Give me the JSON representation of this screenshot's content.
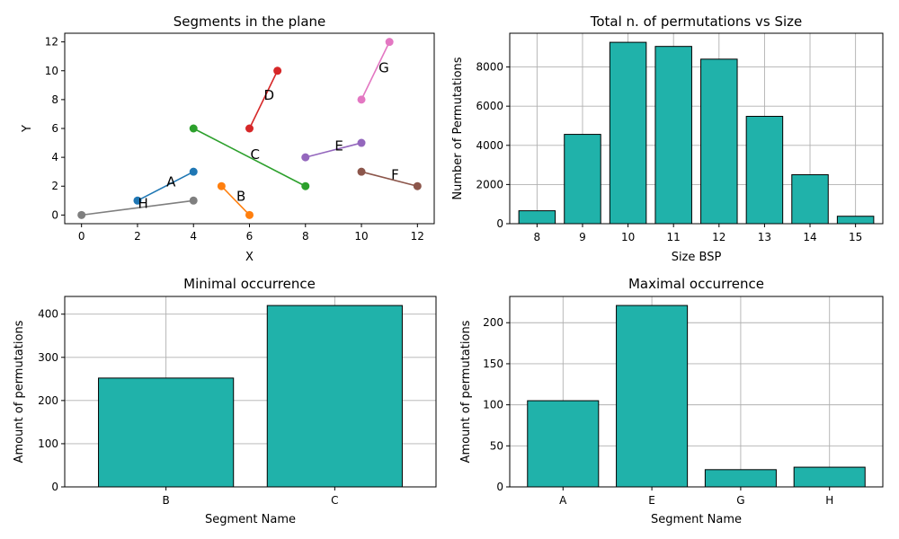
{
  "chart_data": [
    {
      "type": "line",
      "title": "Segments in the plane",
      "xlabel": "X",
      "ylabel": "Y",
      "xlim": [
        -0.6,
        12.6
      ],
      "ylim": [
        -0.6,
        12.6
      ],
      "xticks": [
        0,
        2,
        4,
        6,
        8,
        10,
        12
      ],
      "yticks": [
        0,
        2,
        4,
        6,
        8,
        10,
        12
      ],
      "grid": false,
      "segments": [
        {
          "name": "A",
          "color": "#1f77b4",
          "points": [
            [
              2,
              1
            ],
            [
              4,
              3
            ]
          ],
          "label_at": [
            3.2,
            2.3
          ]
        },
        {
          "name": "B",
          "color": "#ff7f0e",
          "points": [
            [
              5,
              2
            ],
            [
              6,
              0
            ]
          ],
          "label_at": [
            5.7,
            1.3
          ]
        },
        {
          "name": "C",
          "color": "#2ca02c",
          "points": [
            [
              4,
              6
            ],
            [
              8,
              2
            ]
          ],
          "label_at": [
            6.2,
            4.2
          ]
        },
        {
          "name": "D",
          "color": "#d62728",
          "points": [
            [
              6,
              6
            ],
            [
              7,
              10
            ]
          ],
          "label_at": [
            6.7,
            8.3
          ]
        },
        {
          "name": "E",
          "color": "#9467bd",
          "points": [
            [
              8,
              4
            ],
            [
              10,
              5
            ]
          ],
          "label_at": [
            9.2,
            4.8
          ]
        },
        {
          "name": "F",
          "color": "#8c564b",
          "points": [
            [
              10,
              3
            ],
            [
              12,
              2
            ]
          ],
          "label_at": [
            11.2,
            2.8
          ]
        },
        {
          "name": "G",
          "color": "#e377c2",
          "points": [
            [
              10,
              8
            ],
            [
              11,
              12
            ]
          ],
          "label_at": [
            10.8,
            10.2
          ]
        },
        {
          "name": "H",
          "color": "#7f7f7f",
          "points": [
            [
              0,
              0
            ],
            [
              4,
              1
            ]
          ],
          "label_at": [
            2.2,
            0.8
          ]
        }
      ]
    },
    {
      "type": "bar",
      "title": "Total n. of permutations vs Size",
      "xlabel": "Size BSP",
      "ylabel": "Number of Permutations",
      "categories": [
        "8",
        "9",
        "10",
        "11",
        "12",
        "13",
        "14",
        "15"
      ],
      "values": [
        660,
        4560,
        9260,
        9050,
        8400,
        5480,
        2500,
        380
      ],
      "ylim": [
        0,
        9723
      ],
      "yticks": [
        0,
        2000,
        4000,
        6000,
        8000
      ],
      "grid": true,
      "bar_color": "#20b2aa",
      "edge_color": "#000000"
    },
    {
      "type": "bar",
      "title": "Minimal occurrence",
      "xlabel": "Segment Name",
      "ylabel": "Amount of permutations",
      "categories": [
        "B",
        "C"
      ],
      "values": [
        252,
        420
      ],
      "ylim": [
        0,
        441
      ],
      "yticks": [
        0,
        100,
        200,
        300,
        400
      ],
      "grid": true,
      "bar_color": "#20b2aa",
      "edge_color": "#000000"
    },
    {
      "type": "bar",
      "title": "Maximal occurrence",
      "xlabel": "Segment Name",
      "ylabel": "Amount of permutations",
      "categories": [
        "A",
        "E",
        "G",
        "H"
      ],
      "values": [
        105,
        221,
        21,
        24
      ],
      "ylim": [
        0,
        232
      ],
      "yticks": [
        0,
        50,
        100,
        150,
        200
      ],
      "grid": true,
      "bar_color": "#20b2aa",
      "edge_color": "#000000"
    }
  ]
}
